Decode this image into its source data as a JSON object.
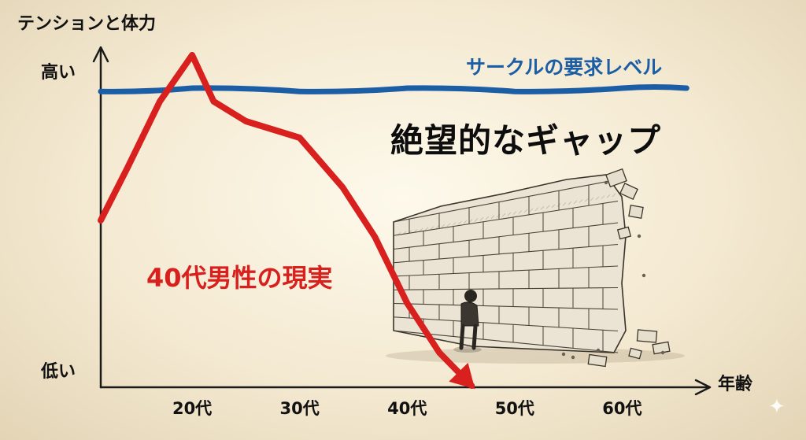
{
  "chart_data": {
    "type": "line",
    "title": "",
    "ylabel": "テンションと体力",
    "xlabel": "年齢",
    "y_tick_labels": {
      "high": "高い",
      "low": "低い"
    },
    "categories": [
      "20代",
      "30代",
      "40代",
      "50代",
      "60代"
    ],
    "xlim": [
      11.5,
      67
    ],
    "ylim": [
      0,
      100
    ],
    "series": [
      {
        "name": "サークルの要求レベル",
        "color": "#1b5ea6",
        "points": [
          [
            11.5,
            89
          ],
          [
            20,
            90
          ],
          [
            30,
            89
          ],
          [
            40,
            90
          ],
          [
            50,
            89
          ],
          [
            60,
            90
          ],
          [
            66,
            90
          ]
        ]
      },
      {
        "name": "40代男性の現実",
        "color": "#d8201e",
        "points": [
          [
            11.5,
            50
          ],
          [
            14,
            66
          ],
          [
            17,
            86
          ],
          [
            20,
            100
          ],
          [
            22,
            86
          ],
          [
            25,
            80
          ],
          [
            30,
            75
          ],
          [
            34,
            60
          ],
          [
            37,
            45
          ],
          [
            40,
            25
          ],
          [
            43,
            10
          ],
          [
            46,
            0
          ]
        ]
      }
    ],
    "annotation": "絶望的なギャップ",
    "grid": false,
    "legend": "inline-labels"
  },
  "illustration": {
    "description_icon": "crumbling-brick-wall-with-sad-man"
  },
  "colors": {
    "background": "#f3e8cf",
    "axis": "#1a1a1a",
    "blue": "#1b5ea6",
    "red": "#d8201e"
  }
}
